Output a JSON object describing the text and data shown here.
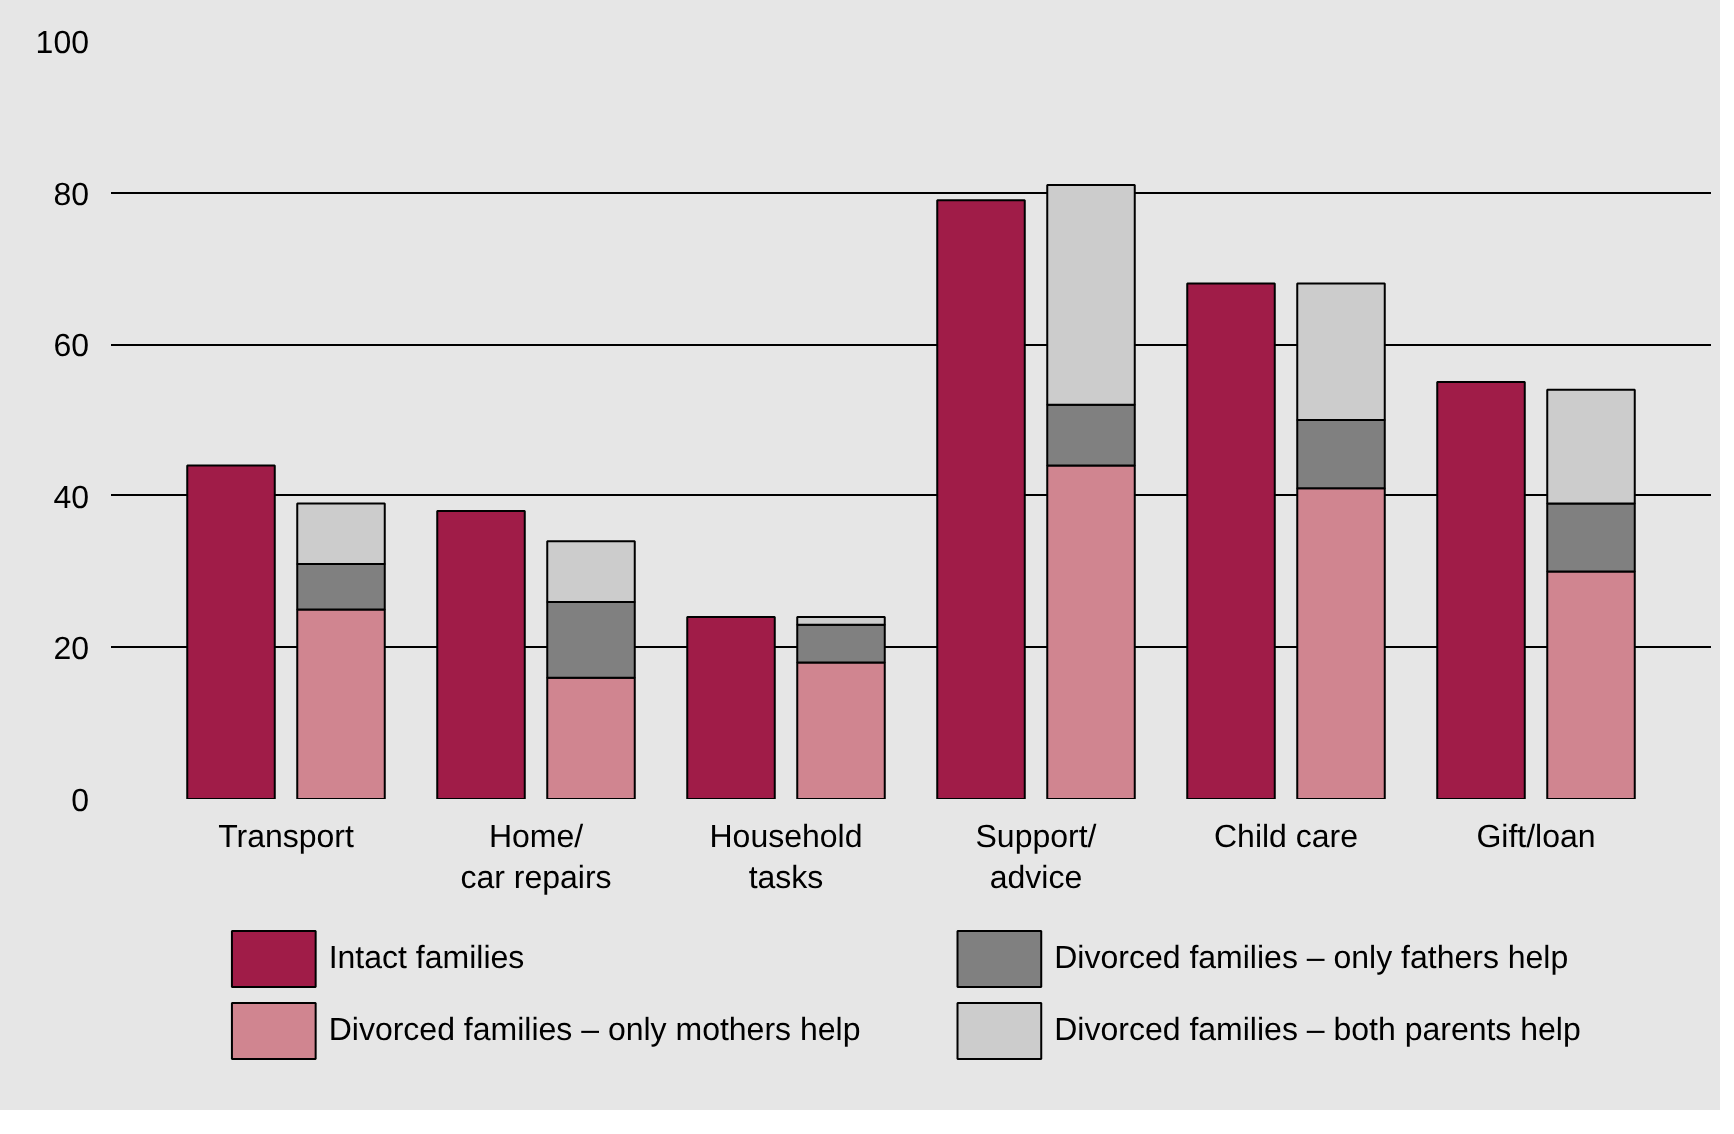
{
  "chart_data": {
    "type": "bar",
    "categories": [
      "Transport",
      "Home/\ncar repairs",
      "Household\ntasks",
      "Support/\nadvice",
      "Child care",
      "Gift/loan"
    ],
    "series": [
      {
        "name": "Intact families",
        "color": "#a01c48",
        "values": [
          44,
          38,
          24,
          79,
          68,
          55
        ]
      },
      {
        "name": "Divorced families – only mothers help",
        "color": "#d08590",
        "values": [
          25,
          16,
          18,
          44,
          41,
          30
        ],
        "base": [
          0,
          0,
          0,
          0,
          0,
          0
        ]
      },
      {
        "name": "Divorced families – only fathers help",
        "color": "#808080",
        "values": [
          6,
          10,
          5,
          8,
          9,
          9
        ],
        "base": [
          25,
          16,
          18,
          44,
          41,
          30
        ]
      },
      {
        "name": "Divorced families – both parents help",
        "color": "#cccccc",
        "values": [
          8,
          8,
          1,
          29,
          18,
          15
        ],
        "base": [
          31,
          26,
          23,
          52,
          50,
          39
        ]
      }
    ],
    "ylim": [
      0,
      100
    ],
    "yticks": [
      0,
      20,
      40,
      60,
      80,
      100
    ],
    "grid": "y",
    "legend": "bottom"
  }
}
